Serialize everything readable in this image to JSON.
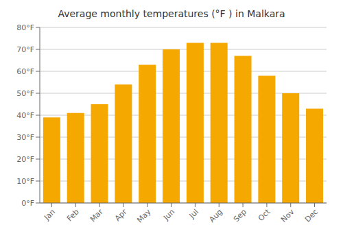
{
  "chart_data": {
    "type": "bar",
    "title": "Average monthly temperatures (°F ) in Malkara",
    "categories": [
      "Jan",
      "Feb",
      "Mar",
      "Apr",
      "May",
      "Jun",
      "Jul",
      "Aug",
      "Sep",
      "Oct",
      "Nov",
      "Dec"
    ],
    "values": [
      39,
      41,
      45,
      54,
      63,
      70,
      73,
      73,
      67,
      58,
      50,
      43
    ],
    "color": "#F5A800",
    "ylim": [
      0,
      80
    ],
    "yticks": [
      {
        "value": 0,
        "label": "0°F"
      },
      {
        "value": 10,
        "label": "10°F"
      },
      {
        "value": 20,
        "label": "20°F"
      },
      {
        "value": 30,
        "label": "30°F"
      },
      {
        "value": 40,
        "label": "40°F"
      },
      {
        "value": 50,
        "label": "50°F"
      },
      {
        "value": 60,
        "label": "60°F"
      },
      {
        "value": 70,
        "label": "70°F"
      },
      {
        "value": 80,
        "label": "80°F"
      }
    ],
    "grid": true
  }
}
